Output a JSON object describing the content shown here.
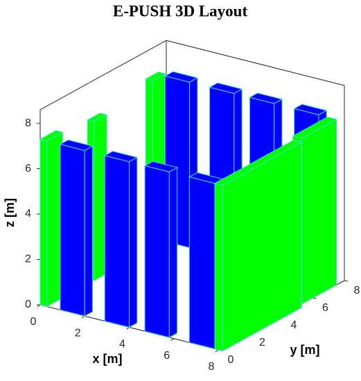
{
  "chart_data": {
    "type": "bar3d",
    "title": "E-PUSH 3D Layout",
    "xlabel": "x [m]",
    "ylabel": "y [m]",
    "zlabel": "z [m]",
    "xlim": [
      0,
      8
    ],
    "ylim": [
      0,
      8
    ],
    "zlim": [
      0,
      8.6
    ],
    "xticks": [
      0,
      2,
      4,
      6,
      8
    ],
    "yticks": [
      0,
      2,
      4,
      6,
      8
    ],
    "zticks": [
      0,
      2,
      4,
      6,
      8
    ],
    "edge_color": "#40e0d0",
    "boxes": [
      {
        "x": [
          0,
          0.3
        ],
        "y": [
          6.7,
          7.5
        ],
        "z": [
          0,
          7.4
        ],
        "color": "#00ff00"
      },
      {
        "x": [
          0.3,
          1.4
        ],
        "y": [
          7.5,
          8
        ],
        "z": [
          0,
          7.3
        ],
        "color": "#0000ff"
      },
      {
        "x": [
          2.3,
          3.4
        ],
        "y": [
          7.5,
          8
        ],
        "z": [
          0,
          7.3
        ],
        "color": "#0000ff"
      },
      {
        "x": [
          4.1,
          5.2
        ],
        "y": [
          7.5,
          8
        ],
        "z": [
          0,
          7.3
        ],
        "color": "#0000ff"
      },
      {
        "x": [
          6.1,
          7.2
        ],
        "y": [
          7.5,
          8
        ],
        "z": [
          0,
          7.3
        ],
        "color": "#0000ff"
      },
      {
        "x": [
          7.6,
          8
        ],
        "y": [
          5.3,
          7.5
        ],
        "z": [
          0,
          7.3
        ],
        "color": "#00ff00"
      },
      {
        "x": [
          0,
          0.3
        ],
        "y": [
          3,
          3.8
        ],
        "z": [
          0,
          7
        ],
        "color": "#00ff00"
      },
      {
        "x": [
          0,
          0.3
        ],
        "y": [
          0,
          1
        ],
        "z": [
          0,
          7.3
        ],
        "color": "#00ff00"
      },
      {
        "x": [
          0.9,
          2
        ],
        "y": [
          0,
          0.5
        ],
        "z": [
          0,
          7.3
        ],
        "color": "#0000ff"
      },
      {
        "x": [
          2.9,
          4
        ],
        "y": [
          0,
          0.5
        ],
        "z": [
          0,
          7.3
        ],
        "color": "#0000ff"
      },
      {
        "x": [
          4.7,
          5.8
        ],
        "y": [
          0,
          0.5
        ],
        "z": [
          0,
          7.3
        ],
        "color": "#0000ff"
      },
      {
        "x": [
          6.7,
          7.85
        ],
        "y": [
          0,
          0.5
        ],
        "z": [
          0,
          7.3
        ],
        "color": "#0000ff"
      },
      {
        "x": [
          7.85,
          8.2
        ],
        "y": [
          0,
          5
        ],
        "z": [
          0,
          7.3
        ],
        "color": "#00ff00"
      }
    ]
  }
}
